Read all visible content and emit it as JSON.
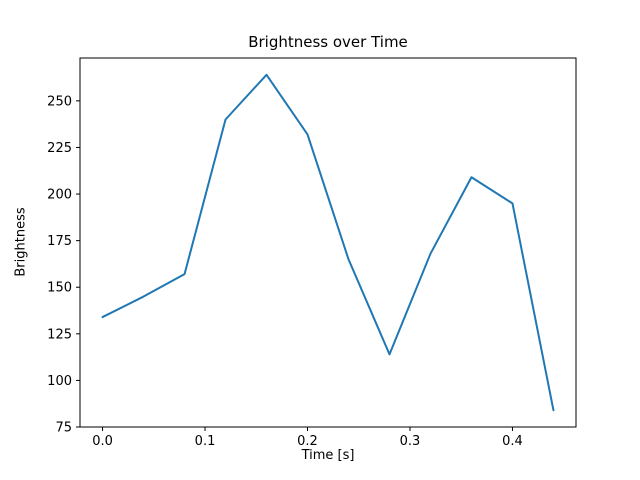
{
  "chart_data": {
    "type": "line",
    "title": "Brightness over Time",
    "xlabel": "Time [s]",
    "ylabel": "Brightness",
    "x": [
      0.0,
      0.04,
      0.08,
      0.12,
      0.16,
      0.2,
      0.24,
      0.28,
      0.32,
      0.36,
      0.4,
      0.44
    ],
    "y": [
      134,
      145,
      157,
      240,
      264,
      232,
      165,
      114,
      168,
      209,
      195,
      84
    ],
    "xlim": [
      -0.022,
      0.462
    ],
    "ylim": [
      75,
      273
    ],
    "xticks": [
      0.0,
      0.1,
      0.2,
      0.3,
      0.4
    ],
    "yticks": [
      75,
      100,
      125,
      150,
      175,
      200,
      225,
      250
    ],
    "x_tick_labels": [
      "0.0",
      "0.1",
      "0.2",
      "0.3",
      "0.4"
    ],
    "y_tick_labels": [
      "75",
      "100",
      "125",
      "150",
      "175",
      "200",
      "225",
      "250"
    ],
    "line_color": "#1f77b4",
    "axis_color": "#000000",
    "background_color": "#ffffff",
    "grid": false,
    "legend_position": "none"
  }
}
